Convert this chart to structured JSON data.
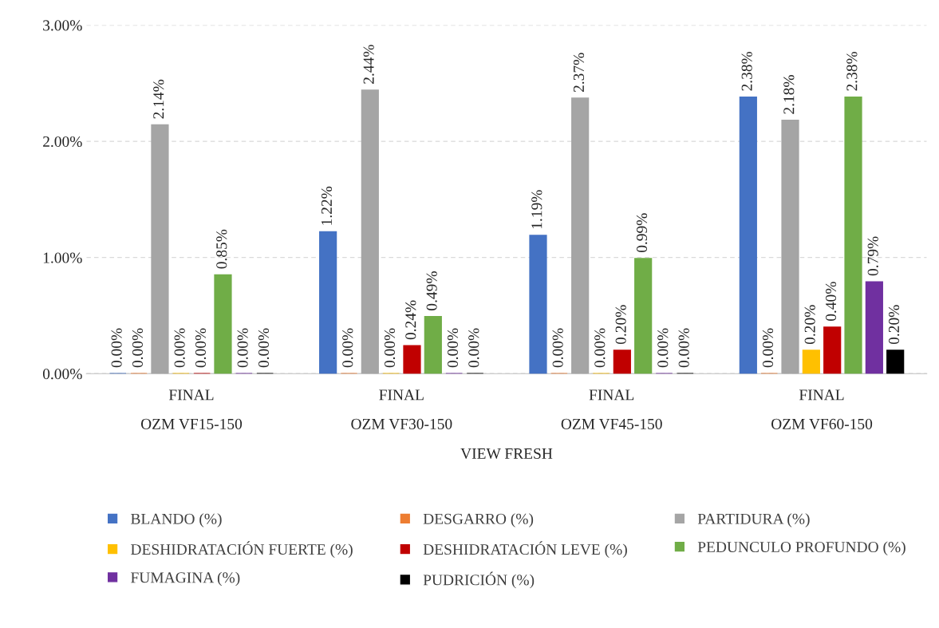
{
  "chart_data": {
    "type": "bar",
    "xlabel": "VIEW FRESH",
    "categories": [
      "FINAL\nOZM VF15-150",
      "FINAL\nOZM VF30-150",
      "FINAL\nOZM VF45-150",
      "FINAL\nOZM VF60-150"
    ],
    "ylim": [
      0,
      3
    ],
    "yticks": [
      {
        "value": 0,
        "label": "0.00%"
      },
      {
        "value": 1,
        "label": "1.00%"
      },
      {
        "value": 2,
        "label": "2.00%"
      },
      {
        "value": 3,
        "label": "3.00%"
      }
    ],
    "grid": "y",
    "legend": "bottom",
    "series": [
      {
        "name": "BLANDO (%)",
        "color": "#4472c4",
        "values": [
          0,
          1.22,
          1.19,
          2.38
        ],
        "value_labels": [
          "0.00%",
          "1.22%",
          "1.19%",
          "2.38%"
        ]
      },
      {
        "name": "DESGARRO (%)",
        "color": "#ed7d31",
        "values": [
          0,
          0,
          0,
          0
        ],
        "value_labels": [
          "0.00%",
          "0.00%",
          "0.00%",
          "0.00%"
        ]
      },
      {
        "name": "PARTIDURA (%)",
        "color": "#a5a5a5",
        "values": [
          2.14,
          2.44,
          2.37,
          2.18
        ],
        "value_labels": [
          "2.14%",
          "2.44%",
          "2.37%",
          "2.18%"
        ]
      },
      {
        "name": "DESHIDRATACIÓN FUERTE (%)",
        "color": "#ffc000",
        "values": [
          0,
          0,
          0,
          0.2
        ],
        "value_labels": [
          "0.00%",
          "0.00%",
          "0.00%",
          "0.20%"
        ]
      },
      {
        "name": "DESHIDRATACIÓN LEVE (%)",
        "color": "#c00000",
        "values": [
          0,
          0.24,
          0.2,
          0.4
        ],
        "value_labels": [
          "0.00%",
          "0.24%",
          "0.20%",
          "0.40%"
        ]
      },
      {
        "name": "PEDUNCULO PROFUNDO (%)",
        "color": "#70ad47",
        "values": [
          0.85,
          0.49,
          0.99,
          2.38
        ],
        "value_labels": [
          "0.85%",
          "0.49%",
          "0.99%",
          "2.38%"
        ]
      },
      {
        "name": "FUMAGINA (%)",
        "color": "#7030a0",
        "values": [
          0,
          0,
          0,
          0.79
        ],
        "value_labels": [
          "0.00%",
          "0.00%",
          "0.00%",
          "0.79%"
        ]
      },
      {
        "name": "PUDRICIÓN (%)",
        "color": "#000000",
        "values": [
          0,
          0,
          0,
          0.2
        ],
        "value_labels": [
          "0.00%",
          "0.00%",
          "0.00%",
          "0.20%"
        ]
      }
    ]
  }
}
